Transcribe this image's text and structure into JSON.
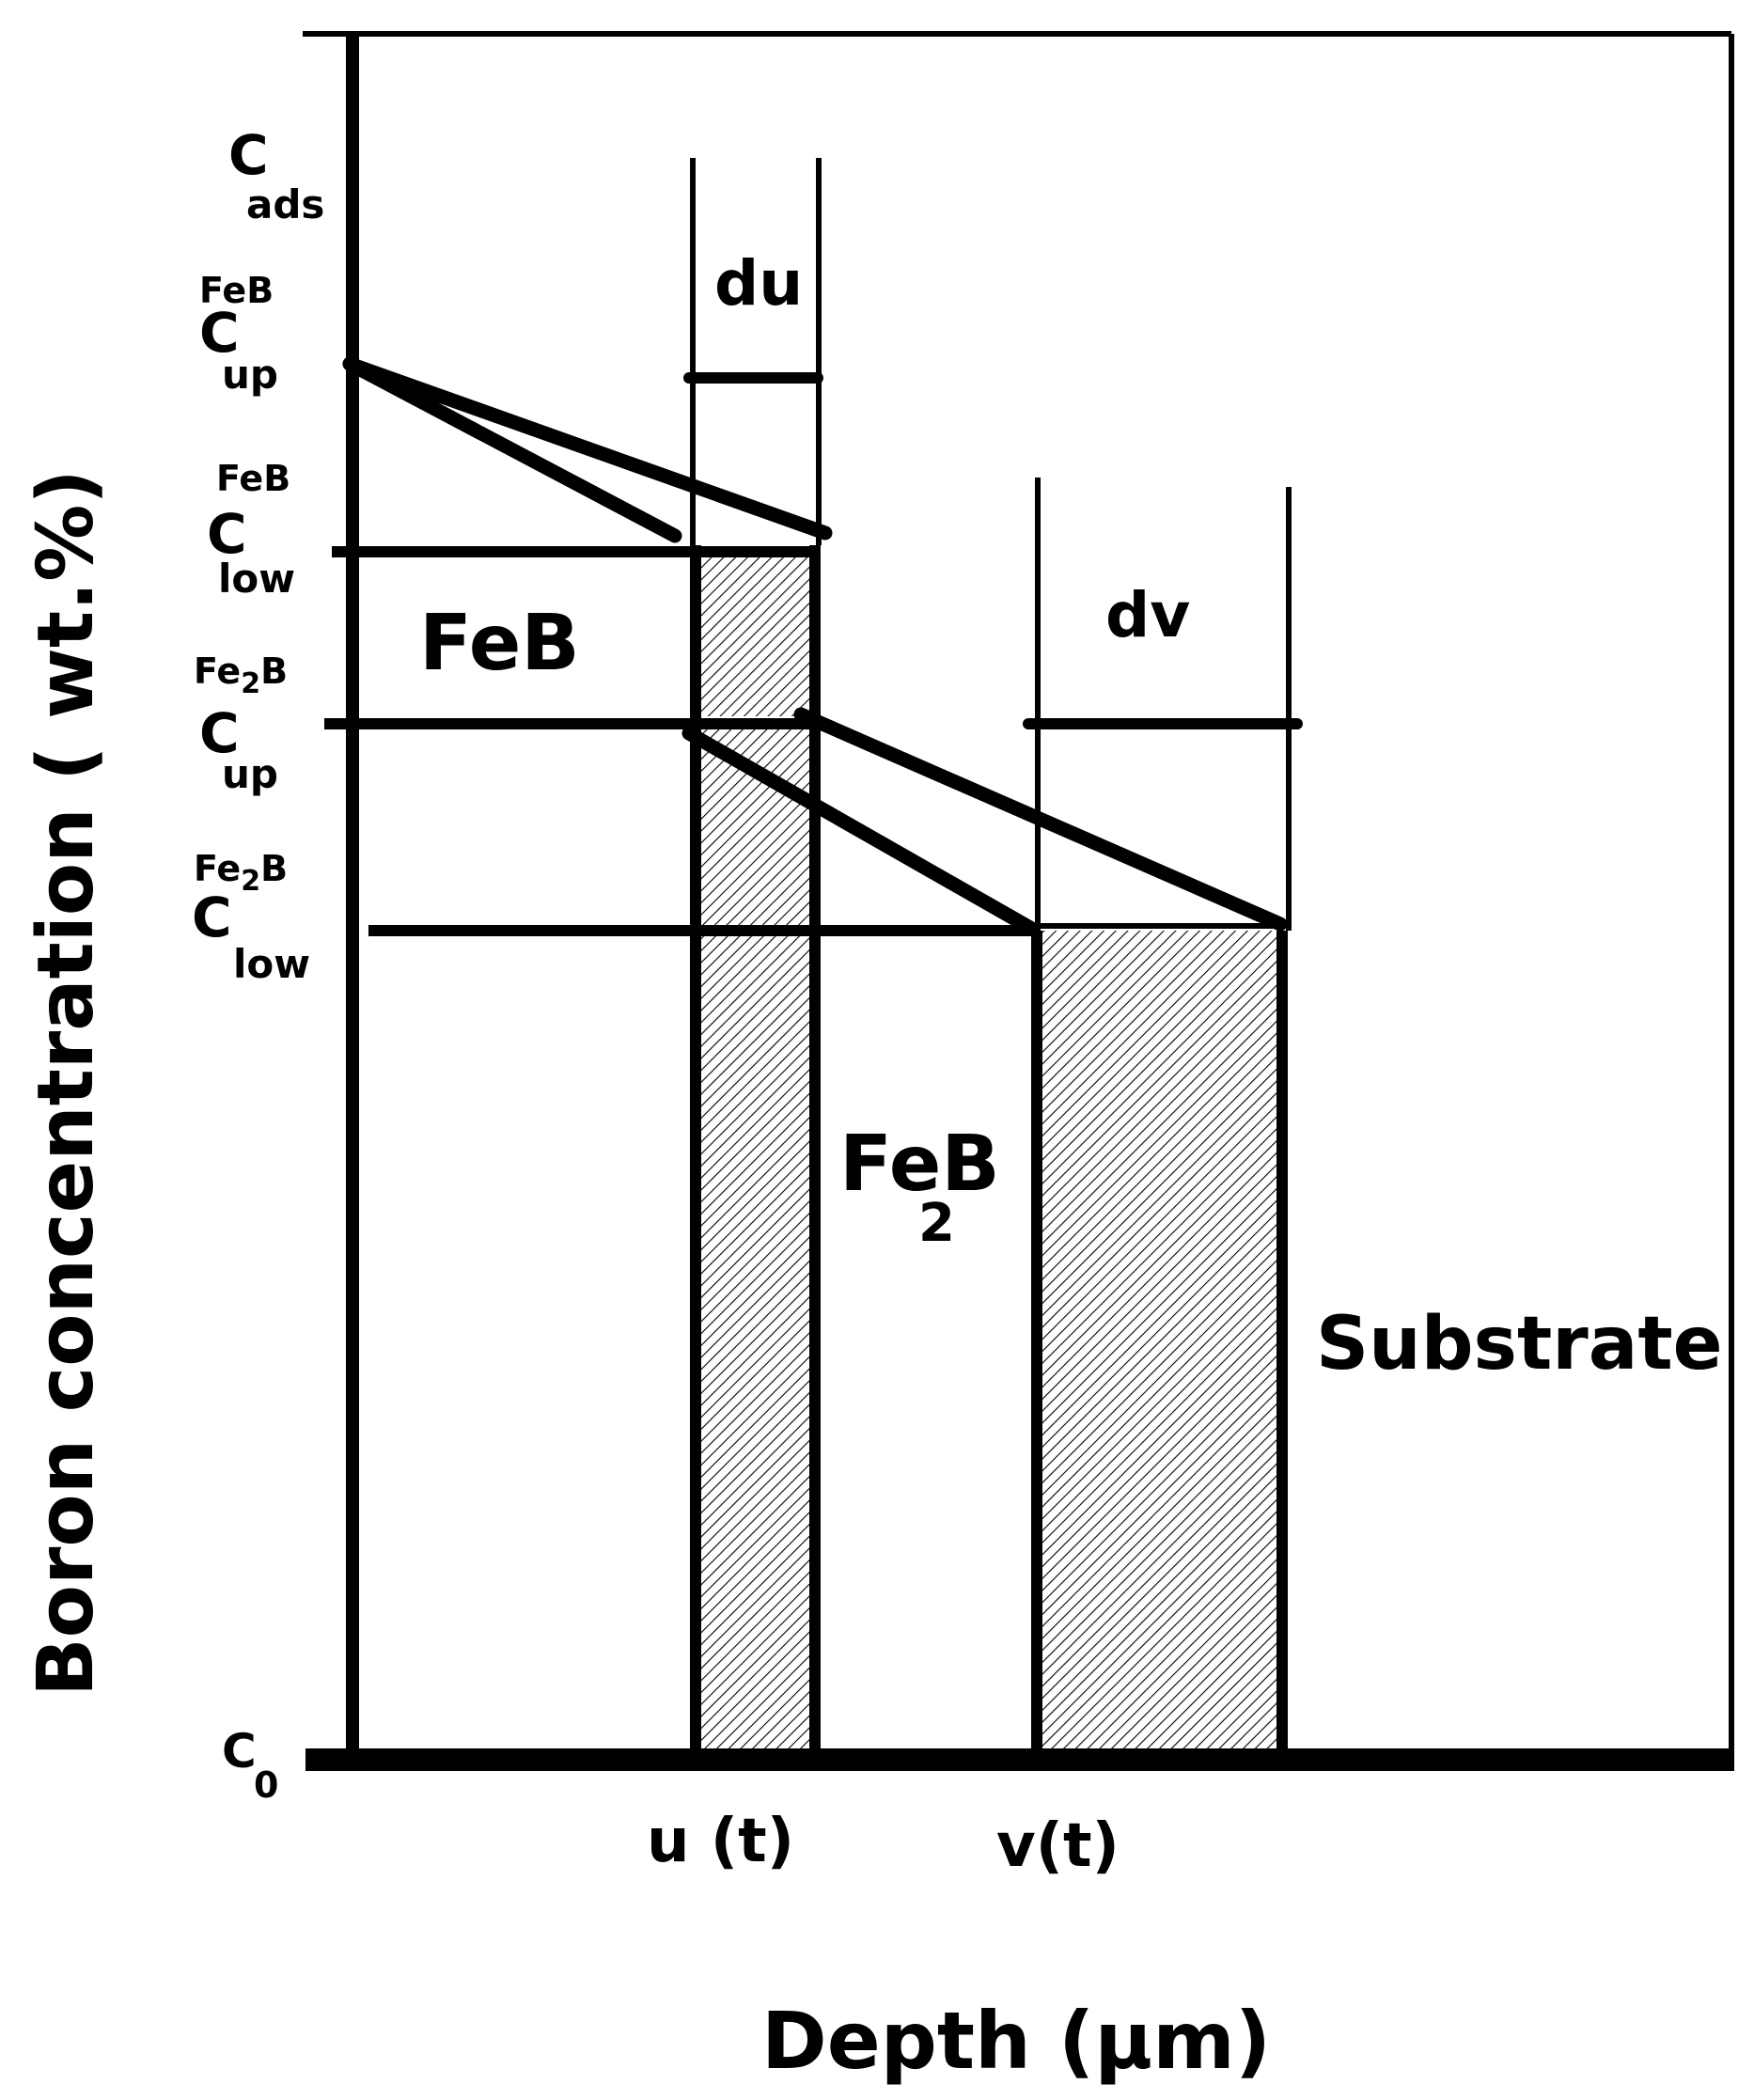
{
  "diagram": {
    "y_axis_label": "Boron  concentration  ( wt.%)",
    "x_axis_label": "Depth (µm)",
    "concentration_levels": {
      "c_ads": {
        "symbol": "C",
        "subscript": "ads",
        "superscript": ""
      },
      "c_up_feb": {
        "symbol": "C",
        "subscript": "up",
        "superscript": "FeB"
      },
      "c_low_feb": {
        "symbol": "C",
        "subscript": "low",
        "superscript": "FeB"
      },
      "c_up_fe2b": {
        "symbol": "C",
        "subscript": "up",
        "superscript": "Fe",
        "superscript_sub": "2",
        "superscript_tail": "B"
      },
      "c_low_fe2b": {
        "symbol": "C",
        "subscript": "low",
        "superscript": "Fe",
        "superscript_sub": "2",
        "superscript_tail": "B"
      },
      "c_0": {
        "symbol": "C",
        "subscript": "0"
      }
    },
    "regions": {
      "feb": "FeB",
      "feb2": {
        "main": "FeB",
        "subscript": "2"
      },
      "substrate": "Substrate"
    },
    "increments": {
      "du": "du",
      "dv": "dv"
    },
    "interfaces": {
      "u": "u (t)",
      "v": "v(t)"
    },
    "colors": {
      "line": "#000000",
      "background": "#ffffff"
    }
  }
}
